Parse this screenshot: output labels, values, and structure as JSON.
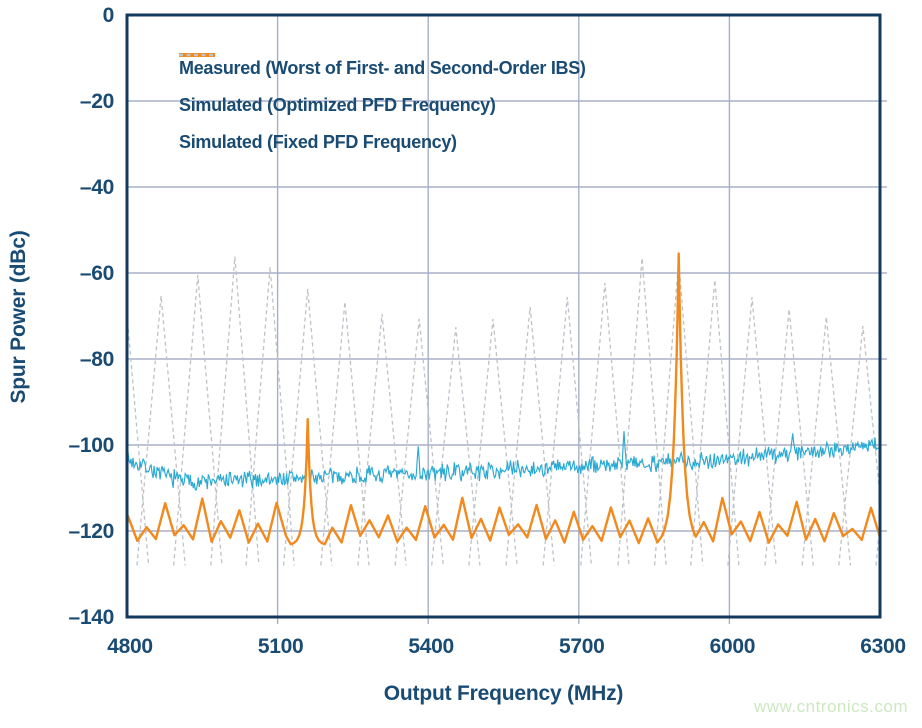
{
  "watermark": "www.cntronics.com",
  "colors": {
    "text_navy": "#1A4B73",
    "frame_navy": "#14395E",
    "gridline": "#A8AFC8",
    "measured_cyan": "#2AA9D2",
    "simulated_orange": "#F2891D",
    "simulated_gray": "#BEC2C8",
    "watermark_green": "#cbe8c0",
    "background": "#FFFFFF"
  },
  "chart_data": {
    "type": "line",
    "title": "",
    "xlabel": "Output Frequency (MHz)",
    "ylabel": "Spur Power (dBc)",
    "xlim": [
      4800,
      6300
    ],
    "ylim": [
      -140,
      0
    ],
    "x_ticks": [
      4800,
      5100,
      5400,
      5700,
      6000,
      6300
    ],
    "x_tick_labels": [
      "4800",
      "5100",
      "5400",
      "5700",
      "6000",
      "6300"
    ],
    "y_ticks": [
      0,
      -20,
      -40,
      -60,
      -80,
      -100,
      -120,
      -140
    ],
    "y_tick_labels": [
      "0",
      "–20",
      "–40",
      "–60",
      "–80",
      "–100",
      "–120",
      "–140"
    ],
    "grid": true,
    "legend_position": "top-left-inside",
    "series": [
      {
        "name": "Measured (Worst of First- and Second-Order IBS)",
        "color": "#2AA9D2",
        "style": "solid",
        "render": "noisy_line",
        "noise_db": 1.7,
        "trend": [
          [
            4800,
            -103.5
          ],
          [
            4830,
            -104.5
          ],
          [
            4870,
            -107.0
          ],
          [
            4930,
            -108.6
          ],
          [
            4990,
            -108.3
          ],
          [
            5080,
            -108.0
          ],
          [
            5180,
            -107.4
          ],
          [
            5300,
            -107.0
          ],
          [
            5430,
            -106.4
          ],
          [
            5560,
            -105.7
          ],
          [
            5680,
            -105.2
          ],
          [
            5800,
            -104.3
          ],
          [
            5900,
            -103.8
          ],
          [
            6000,
            -103.2
          ],
          [
            6100,
            -102.0
          ],
          [
            6200,
            -101.0
          ],
          [
            6300,
            -100.0
          ]
        ],
        "spikes": [
          [
            5160,
            -99.0
          ],
          [
            5380,
            -100.3
          ],
          [
            5790,
            -96.8
          ],
          [
            6125,
            -97.3
          ]
        ]
      },
      {
        "name": "Simulated (Optimized PFD Frequency)",
        "color": "#F2891D",
        "style": "solid",
        "render": "spur_zigzag",
        "baseline": -121.8,
        "minor_peak_start": 4802,
        "minor_peak_spacing": 37,
        "minor_peak_levels": [
          -116.5,
          -119.0,
          -114.0,
          -118.5,
          -112.8,
          -117.5,
          -115.0,
          -118.8,
          -113.5,
          -117.0,
          -115.8,
          -119.2,
          -114.2,
          -118.0
        ],
        "major_spikes": [
          {
            "x": 5160,
            "y": -94.0,
            "tau": 6.5,
            "floor": -123.2
          },
          {
            "x": 5899,
            "y": -55.5,
            "tau": 9.5,
            "floor": -123.2
          }
        ]
      },
      {
        "name": "Simulated (Fixed PFD Frequency)",
        "color": "#BEC2C8",
        "style": "dashed",
        "render": "tents",
        "tent_base_db": -128,
        "tent_halfwidth_mhz": 48,
        "peaks": [
          [
            4795,
            -63.0
          ],
          [
            4868,
            -65.3
          ],
          [
            4941,
            -60.5
          ],
          [
            5015,
            -56.2
          ],
          [
            5085,
            -58.6
          ],
          [
            5160,
            -63.7
          ],
          [
            5234,
            -66.7
          ],
          [
            5308,
            -69.5
          ],
          [
            5382,
            -70.7
          ],
          [
            5455,
            -72.6
          ],
          [
            5529,
            -70.7
          ],
          [
            5603,
            -67.9
          ],
          [
            5677,
            -65.6
          ],
          [
            5752,
            -62.3
          ],
          [
            5826,
            -56.5
          ],
          [
            5899,
            -57.0
          ],
          [
            5971,
            -61.6
          ],
          [
            6045,
            -65.6
          ],
          [
            6119,
            -68.4
          ],
          [
            6193,
            -70.2
          ],
          [
            6266,
            -72.3
          ],
          [
            6340,
            -69.0
          ]
        ]
      }
    ]
  }
}
